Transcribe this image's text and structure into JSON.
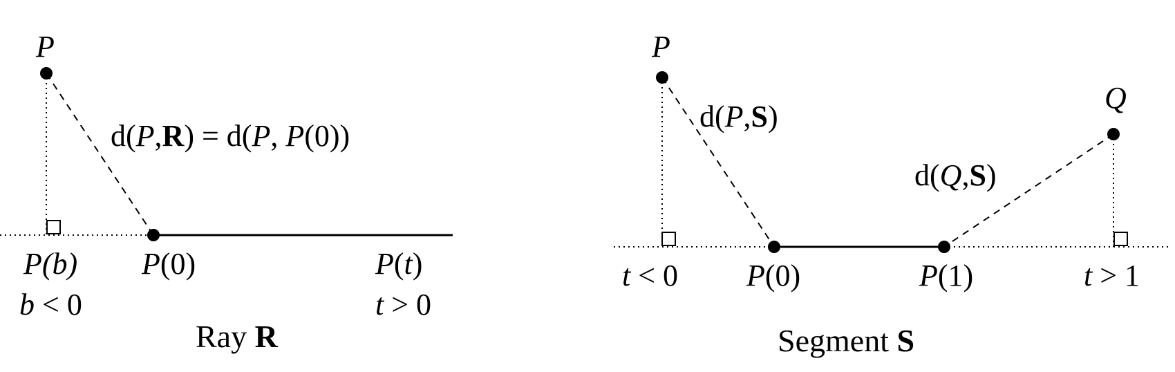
{
  "ray": {
    "caption_word": "Ray",
    "caption_symbol": "R",
    "point_label": "P",
    "distance_label": {
      "d1": "d(",
      "p1": "P",
      "comma1": ",",
      "r": "R",
      "eq": ") = d(",
      "p2": "P",
      "comma2": ", ",
      "p3": "P",
      "tail": "(0))"
    },
    "foot_label": {
      "p": "P",
      "arg": "(b)"
    },
    "foot_condition": {
      "var": "b",
      "rel": " < 0"
    },
    "origin_label": {
      "p": "P",
      "arg": "(0)"
    },
    "t_label": {
      "p": "P",
      "open": "(",
      "t": "t",
      "close": ")"
    },
    "t_condition": {
      "var": "t",
      "rel": " > 0"
    }
  },
  "segment": {
    "caption_word": "Segment",
    "caption_symbol": "S",
    "point_p_label": "P",
    "point_q_label": "Q",
    "dist_p_label": {
      "d": "d(",
      "p": "P",
      "comma": ",",
      "s": "S",
      "close": ")"
    },
    "dist_q_label": {
      "d": "d(",
      "q": "Q",
      "comma": ",",
      "s": "S",
      "close": ")"
    },
    "left_condition": {
      "var": "t",
      "rel": " < 0"
    },
    "right_condition": {
      "var": "t",
      "rel": " > 1"
    },
    "start_label": {
      "p": "P",
      "arg": "(0)"
    },
    "end_label": {
      "p": "P",
      "arg": "(1)"
    }
  }
}
